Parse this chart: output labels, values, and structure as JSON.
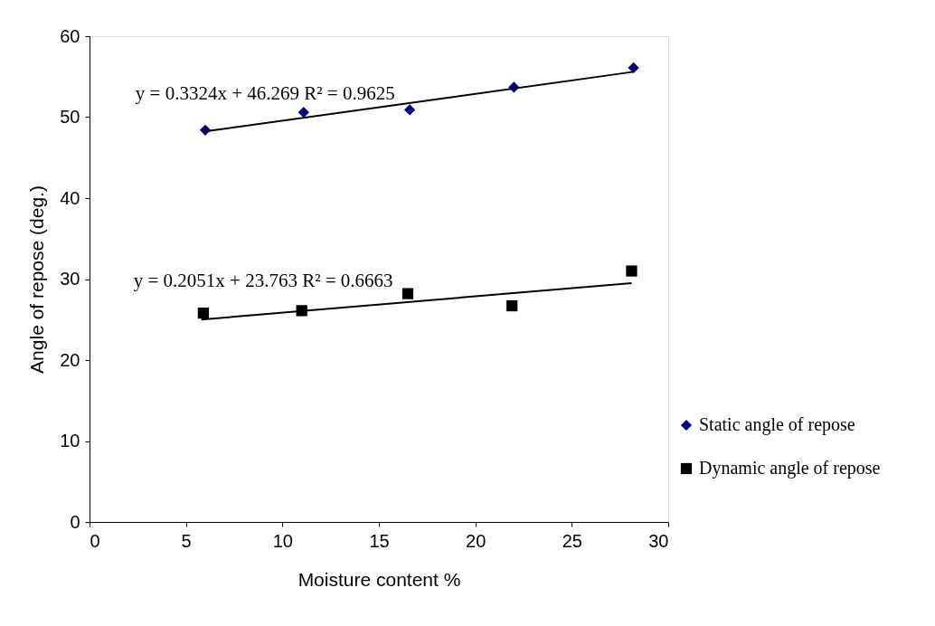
{
  "chart_data": {
    "type": "scatter",
    "xlabel": "Moisture content %",
    "ylabel": "Angle of repose (deg.)",
    "xlim": [
      0,
      30
    ],
    "xticks": [
      0,
      5,
      10,
      15,
      20,
      25,
      30
    ],
    "ylim": [
      0,
      60
    ],
    "yticks": [
      0,
      10,
      20,
      30,
      40,
      50,
      60
    ],
    "grid": false,
    "legend": "bottom right",
    "series": [
      {
        "name": "Static angle of repose",
        "marker": "diamond",
        "color": "#000080",
        "x": [
          6.0,
          11.1,
          16.6,
          22.0,
          28.2
        ],
        "values": [
          48.4,
          50.6,
          50.9,
          53.7,
          56.1
        ]
      },
      {
        "name": "Dynamic angle of repose",
        "marker": "square",
        "color": "#000000",
        "x": [
          5.9,
          11.0,
          16.5,
          21.9,
          28.1
        ],
        "values": [
          25.8,
          26.1,
          28.2,
          26.7,
          31.0
        ]
      },
      {
        "type": "line",
        "marker": "none",
        "line_style": "solid",
        "color": "#000000",
        "x": [
          5.9,
          28.2
        ],
        "values": [
          48.2,
          55.6
        ]
      },
      {
        "type": "line",
        "marker": "none",
        "line_style": "solid",
        "color": "#000000",
        "x": [
          5.8,
          28.1
        ],
        "values": [
          25.0,
          29.5
        ]
      }
    ],
    "annotations": [
      "y = 0.3324x + 46.269  R² = 0.9625",
      "y = 0.2051x + 23.763  R² = 0.6663"
    ]
  }
}
